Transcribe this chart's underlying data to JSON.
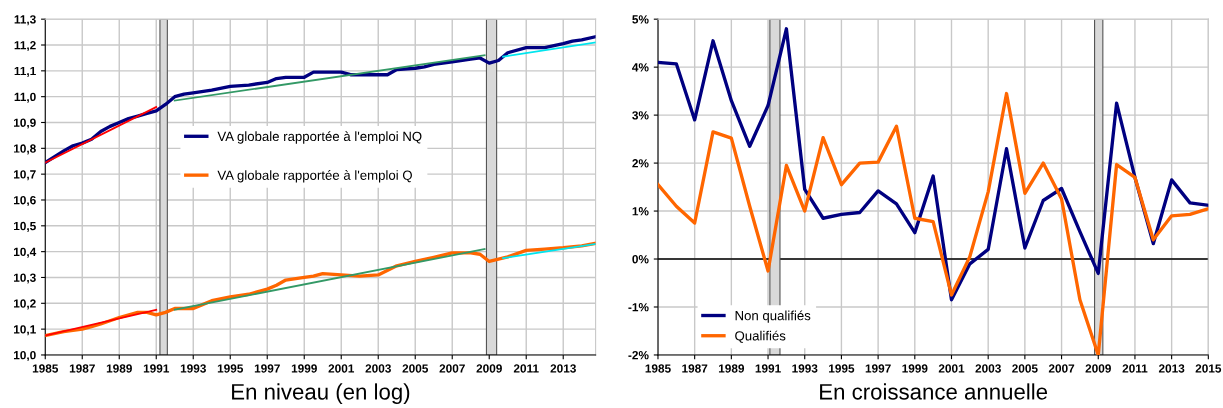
{
  "chart_data": [
    {
      "type": "line",
      "xlabel": "En niveau (en log)",
      "xlim": [
        1985,
        2014.75
      ],
      "xticks": [
        1985,
        1987,
        1989,
        1991,
        1993,
        1995,
        1997,
        1999,
        2001,
        2003,
        2005,
        2007,
        2009,
        2011,
        2013
      ],
      "ylim": [
        10.0,
        11.3
      ],
      "yticks": [
        {
          "value": 10.0,
          "label": "10,0"
        },
        {
          "value": 10.1,
          "label": "10,1"
        },
        {
          "value": 10.2,
          "label": "10,2"
        },
        {
          "value": 10.3,
          "label": "10,3"
        },
        {
          "value": 10.4,
          "label": "10,4"
        },
        {
          "value": 10.5,
          "label": "10,5"
        },
        {
          "value": 10.6,
          "label": "10,6"
        },
        {
          "value": 10.7,
          "label": "10,7"
        },
        {
          "value": 10.8,
          "label": "10,8"
        },
        {
          "value": 10.9,
          "label": "10,9"
        },
        {
          "value": 11.0,
          "label": "11,0"
        },
        {
          "value": 11.1,
          "label": "11,1"
        },
        {
          "value": 11.2,
          "label": "11,2"
        },
        {
          "value": 11.3,
          "label": "11,3"
        }
      ],
      "grid": true,
      "legend": "center",
      "bands": [
        {
          "axis": "x",
          "from": 1991.2,
          "to": 1991.6,
          "color": "#d9d9d9"
        },
        {
          "axis": "x",
          "from": 2008.85,
          "to": 2009.4,
          "color": "#d9d9d9"
        }
      ],
      "series": [
        {
          "name": "VA globale rapportée à l'emploi NQ",
          "color": "#000080",
          "x": [
            1985,
            1986,
            1986.5,
            1987,
            1987.5,
            1988,
            1988.5,
            1989,
            1989.5,
            1990,
            1990.5,
            1991,
            1991.5,
            1992,
            1992.5,
            1993,
            1994,
            1995,
            1996,
            1997,
            1997.5,
            1998,
            1999,
            1999.5,
            2000,
            2001,
            2001.5,
            2002,
            2003,
            2003.5,
            2004,
            2005,
            2005.5,
            2006,
            2007,
            2008,
            2008.5,
            2009,
            2009.5,
            2010,
            2011,
            2011.5,
            2012,
            2013,
            2013.5,
            2014,
            2014.75
          ],
          "values": [
            10.745,
            10.79,
            10.81,
            10.82,
            10.835,
            10.865,
            10.885,
            10.9,
            10.915,
            10.925,
            10.935,
            10.945,
            10.97,
            11.0,
            11.01,
            11.015,
            11.025,
            11.04,
            11.045,
            11.055,
            11.07,
            11.075,
            11.075,
            11.095,
            11.095,
            11.095,
            11.085,
            11.085,
            11.085,
            11.085,
            11.105,
            11.11,
            11.115,
            11.125,
            11.135,
            11.145,
            11.15,
            11.13,
            11.14,
            11.17,
            11.19,
            11.19,
            11.19,
            11.205,
            11.215,
            11.22,
            11.232
          ]
        },
        {
          "name": "VA globale rapportée à l'emploi Q",
          "color": "#ff6600",
          "x": [
            1985,
            1986,
            1987,
            1987.5,
            1988,
            1989,
            1990,
            1990.5,
            1991,
            1991.5,
            1992,
            1993,
            1993.5,
            1994,
            1995,
            1996,
            1997,
            1997.5,
            1998,
            1999,
            1999.5,
            2000,
            2001,
            2002,
            2003,
            2004,
            2005,
            2006,
            2007,
            2008,
            2008.5,
            2009,
            2010,
            2011,
            2012,
            2013,
            2014,
            2014.75
          ],
          "values": [
            10.075,
            10.09,
            10.1,
            10.11,
            10.12,
            10.145,
            10.165,
            10.165,
            10.155,
            10.165,
            10.18,
            10.18,
            10.195,
            10.21,
            10.225,
            10.235,
            10.255,
            10.27,
            10.29,
            10.3,
            10.305,
            10.315,
            10.31,
            10.305,
            10.31,
            10.345,
            10.362,
            10.378,
            10.395,
            10.395,
            10.39,
            10.362,
            10.38,
            10.405,
            10.41,
            10.415,
            10.422,
            10.432
          ]
        },
        {
          "color": "#ff0000",
          "x": [
            1985,
            1991
          ],
          "values": [
            10.745,
            10.96
          ]
        },
        {
          "color": "#ff0000",
          "x": [
            1985,
            1991
          ],
          "values": [
            10.075,
            10.175
          ]
        },
        {
          "color": "#339966",
          "x": [
            1992,
            2008.75
          ],
          "values": [
            10.985,
            11.16
          ]
        },
        {
          "color": "#339966",
          "x": [
            1992,
            2008.75
          ],
          "values": [
            10.175,
            10.41
          ]
        },
        {
          "color": "#00e5ee",
          "x": [
            2009.75,
            2014.75
          ],
          "values": [
            11.155,
            11.21
          ]
        },
        {
          "color": "#00e5ee",
          "x": [
            2009.75,
            2014.75
          ],
          "values": [
            10.375,
            10.43
          ]
        }
      ]
    },
    {
      "type": "line",
      "xlabel": "En croissance annuelle",
      "xlim": [
        1985,
        2015
      ],
      "xticks": [
        1985,
        1987,
        1989,
        1991,
        1993,
        1995,
        1997,
        1999,
        2001,
        2003,
        2005,
        2007,
        2009,
        2011,
        2013,
        2015
      ],
      "ylim": [
        -2,
        5
      ],
      "yticks": [
        {
          "value": -2,
          "label": "-2%"
        },
        {
          "value": -1,
          "label": "-1%"
        },
        {
          "value": 0,
          "label": "0%"
        },
        {
          "value": 1,
          "label": "1%"
        },
        {
          "value": 2,
          "label": "2%"
        },
        {
          "value": 3,
          "label": "3%"
        },
        {
          "value": 4,
          "label": "4%"
        },
        {
          "value": 5,
          "label": "5%"
        }
      ],
      "grid": true,
      "legend": "lower left",
      "ref_lines": [
        {
          "axis": "y",
          "value": 0,
          "color": "#000000"
        }
      ],
      "bands": [
        {
          "axis": "x",
          "from": 1991.1,
          "to": 1991.65,
          "color": "#d9d9d9"
        },
        {
          "axis": "x",
          "from": 2008.8,
          "to": 2009.25,
          "color": "#d9d9d9"
        }
      ],
      "x": [
        1985,
        1986,
        1987,
        1988,
        1989,
        1990,
        1991,
        1992,
        1993,
        1994,
        1995,
        1996,
        1997,
        1998,
        1999,
        2000,
        2001,
        2002,
        2003,
        2004,
        2005,
        2006,
        2007,
        2008,
        2009,
        2010,
        2011,
        2012,
        2013,
        2014,
        2015
      ],
      "series": [
        {
          "name": "Non qualifiés",
          "color": "#000080",
          "values": [
            4.1,
            4.07,
            2.9,
            4.55,
            3.3,
            2.35,
            3.2,
            4.8,
            1.45,
            0.85,
            0.93,
            0.97,
            1.42,
            1.15,
            0.55,
            1.73,
            -0.85,
            -0.1,
            0.2,
            2.3,
            0.23,
            1.22,
            1.47,
            0.57,
            -0.3,
            3.25,
            1.7,
            0.32,
            1.65,
            1.17,
            1.12
          ]
        },
        {
          "name": "Qualifiés",
          "color": "#ff6600",
          "values": [
            1.55,
            1.1,
            0.75,
            2.65,
            2.52,
            1.1,
            -0.25,
            1.95,
            1.0,
            2.53,
            1.55,
            2.0,
            2.02,
            2.77,
            0.85,
            0.78,
            -0.75,
            0.05,
            1.4,
            3.45,
            1.37,
            2.0,
            1.25,
            -0.85,
            -2.0,
            1.97,
            1.7,
            0.4,
            0.9,
            0.93,
            1.05
          ]
        }
      ]
    }
  ]
}
